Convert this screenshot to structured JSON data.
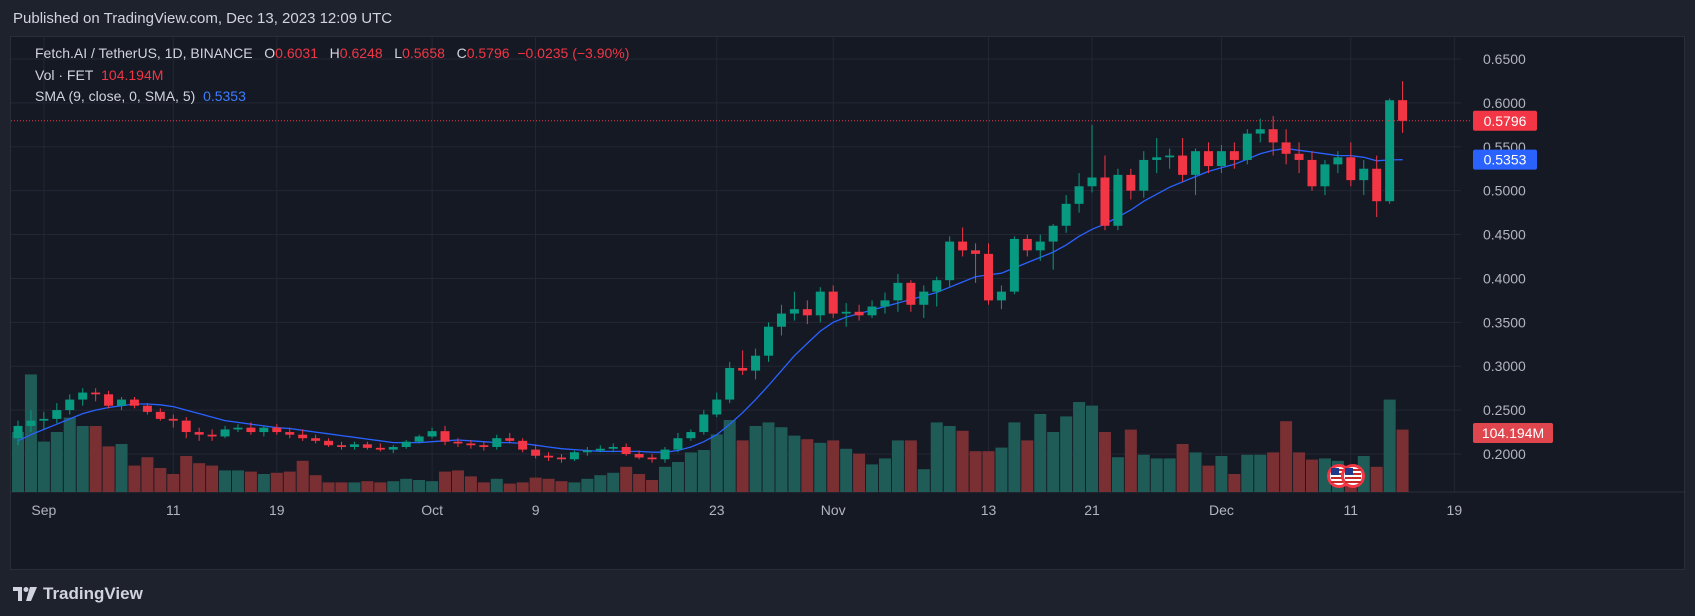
{
  "published": "Published on TradingView.com, Dec 13, 2023 12:09 UTC",
  "brand": "TradingView",
  "legend": {
    "symbol": "Fetch.AI / TetherUS, 1D, BINANCE",
    "o_label": "O",
    "o": "0.6031",
    "h_label": "H",
    "h": "0.6248",
    "l_label": "L",
    "l": "0.5658",
    "c_label": "C",
    "c": "0.5796",
    "change": "−0.0235 (−3.90%)",
    "vol_label": "Vol · FET",
    "vol": "104.194M",
    "sma_label": "SMA (9, close, 0, SMA, 5)",
    "sma": "0.5353"
  },
  "colors": {
    "up": "#089981",
    "down": "#f23645",
    "vol_up": "#1f5c57",
    "vol_down": "#7a2f33",
    "sma": "#2962ff",
    "bg": "#151924",
    "grid": "#232733",
    "text": "#b2b5be"
  },
  "chart_data": {
    "type": "candlestick",
    "y_ticks": [
      "0.6500",
      "0.6000",
      "0.5500",
      "0.5000",
      "0.4500",
      "0.4000",
      "0.3500",
      "0.3000",
      "0.2500",
      "0.2000"
    ],
    "ylim": [
      0.155,
      0.665
    ],
    "x_ticks": [
      {
        "label": "Sep",
        "index": 2
      },
      {
        "label": "11",
        "index": 12
      },
      {
        "label": "19",
        "index": 20
      },
      {
        "label": "Oct",
        "index": 32
      },
      {
        "label": "9",
        "index": 40
      },
      {
        "label": "23",
        "index": 54
      },
      {
        "label": "Nov",
        "index": 63
      },
      {
        "label": "13",
        "index": 75
      },
      {
        "label": "21",
        "index": 83
      },
      {
        "label": "Dec",
        "index": 93
      },
      {
        "label": "11",
        "index": 103
      },
      {
        "label": "19",
        "index": 111
      }
    ],
    "last_price_label": "0.5796",
    "last_price": 0.5796,
    "sma_label": "0.5353",
    "sma_last": 0.5353,
    "volume_label": "104.194M",
    "candles": [
      [
        0.218,
        0.238,
        0.21,
        0.232,
        0.5
      ],
      [
        0.232,
        0.25,
        0.225,
        0.238,
        0.98
      ],
      [
        0.238,
        0.248,
        0.228,
        0.24,
        0.42
      ],
      [
        0.24,
        0.258,
        0.235,
        0.25,
        0.5
      ],
      [
        0.25,
        0.268,
        0.245,
        0.262,
        0.62
      ],
      [
        0.262,
        0.275,
        0.255,
        0.27,
        0.55
      ],
      [
        0.27,
        0.275,
        0.26,
        0.268,
        0.55
      ],
      [
        0.268,
        0.272,
        0.252,
        0.255,
        0.38
      ],
      [
        0.255,
        0.265,
        0.25,
        0.262,
        0.4
      ],
      [
        0.262,
        0.265,
        0.252,
        0.255,
        0.22
      ],
      [
        0.255,
        0.258,
        0.245,
        0.248,
        0.29
      ],
      [
        0.248,
        0.252,
        0.238,
        0.24,
        0.2
      ],
      [
        0.24,
        0.245,
        0.23,
        0.238,
        0.15
      ],
      [
        0.238,
        0.242,
        0.218,
        0.225,
        0.3
      ],
      [
        0.225,
        0.23,
        0.215,
        0.222,
        0.24
      ],
      [
        0.222,
        0.228,
        0.215,
        0.22,
        0.22
      ],
      [
        0.22,
        0.232,
        0.218,
        0.228,
        0.18
      ],
      [
        0.228,
        0.234,
        0.225,
        0.23,
        0.18
      ],
      [
        0.23,
        0.236,
        0.222,
        0.225,
        0.17
      ],
      [
        0.225,
        0.232,
        0.22,
        0.23,
        0.15
      ],
      [
        0.23,
        0.234,
        0.222,
        0.225,
        0.16
      ],
      [
        0.225,
        0.23,
        0.218,
        0.222,
        0.17
      ],
      [
        0.222,
        0.228,
        0.215,
        0.218,
        0.26
      ],
      [
        0.218,
        0.222,
        0.212,
        0.215,
        0.14
      ],
      [
        0.215,
        0.218,
        0.208,
        0.21,
        0.08
      ],
      [
        0.21,
        0.214,
        0.205,
        0.208,
        0.08
      ],
      [
        0.208,
        0.214,
        0.205,
        0.211,
        0.08
      ],
      [
        0.211,
        0.214,
        0.205,
        0.207,
        0.09
      ],
      [
        0.207,
        0.212,
        0.203,
        0.205,
        0.08
      ],
      [
        0.205,
        0.21,
        0.201,
        0.208,
        0.09
      ],
      [
        0.208,
        0.216,
        0.206,
        0.214,
        0.11
      ],
      [
        0.214,
        0.222,
        0.212,
        0.22,
        0.1
      ],
      [
        0.22,
        0.23,
        0.218,
        0.226,
        0.09
      ],
      [
        0.226,
        0.232,
        0.21,
        0.214,
        0.17
      ],
      [
        0.214,
        0.218,
        0.208,
        0.212,
        0.18
      ],
      [
        0.212,
        0.216,
        0.206,
        0.21,
        0.13
      ],
      [
        0.21,
        0.214,
        0.204,
        0.208,
        0.08
      ],
      [
        0.208,
        0.222,
        0.205,
        0.218,
        0.11
      ],
      [
        0.218,
        0.224,
        0.212,
        0.215,
        0.07
      ],
      [
        0.215,
        0.218,
        0.202,
        0.205,
        0.08
      ],
      [
        0.205,
        0.21,
        0.195,
        0.198,
        0.12
      ],
      [
        0.198,
        0.202,
        0.192,
        0.196,
        0.11
      ],
      [
        0.196,
        0.2,
        0.19,
        0.194,
        0.09
      ],
      [
        0.194,
        0.204,
        0.192,
        0.202,
        0.08
      ],
      [
        0.202,
        0.208,
        0.198,
        0.204,
        0.11
      ],
      [
        0.204,
        0.21,
        0.202,
        0.206,
        0.14
      ],
      [
        0.206,
        0.212,
        0.202,
        0.208,
        0.16
      ],
      [
        0.208,
        0.212,
        0.198,
        0.2,
        0.21
      ],
      [
        0.2,
        0.204,
        0.194,
        0.196,
        0.15
      ],
      [
        0.196,
        0.2,
        0.19,
        0.194,
        0.1
      ],
      [
        0.194,
        0.208,
        0.19,
        0.205,
        0.21
      ],
      [
        0.205,
        0.224,
        0.202,
        0.218,
        0.25
      ],
      [
        0.218,
        0.228,
        0.215,
        0.225,
        0.33
      ],
      [
        0.225,
        0.25,
        0.222,
        0.245,
        0.35
      ],
      [
        0.245,
        0.27,
        0.242,
        0.262,
        0.48
      ],
      [
        0.262,
        0.305,
        0.258,
        0.298,
        0.6
      ],
      [
        0.298,
        0.318,
        0.29,
        0.295,
        0.43
      ],
      [
        0.295,
        0.32,
        0.285,
        0.312,
        0.55
      ],
      [
        0.312,
        0.35,
        0.305,
        0.345,
        0.58
      ],
      [
        0.345,
        0.37,
        0.335,
        0.36,
        0.54
      ],
      [
        0.36,
        0.385,
        0.352,
        0.365,
        0.47
      ],
      [
        0.365,
        0.375,
        0.348,
        0.358,
        0.44
      ],
      [
        0.358,
        0.39,
        0.35,
        0.385,
        0.41
      ],
      [
        0.385,
        0.392,
        0.355,
        0.36,
        0.43
      ],
      [
        0.36,
        0.372,
        0.345,
        0.362,
        0.36
      ],
      [
        0.362,
        0.37,
        0.352,
        0.358,
        0.32
      ],
      [
        0.358,
        0.375,
        0.355,
        0.368,
        0.23
      ],
      [
        0.368,
        0.384,
        0.36,
        0.375,
        0.28
      ],
      [
        0.375,
        0.405,
        0.362,
        0.395,
        0.43
      ],
      [
        0.395,
        0.398,
        0.362,
        0.37,
        0.43
      ],
      [
        0.37,
        0.392,
        0.355,
        0.385,
        0.19
      ],
      [
        0.385,
        0.402,
        0.368,
        0.398,
        0.58
      ],
      [
        0.398,
        0.448,
        0.39,
        0.442,
        0.55
      ],
      [
        0.442,
        0.458,
        0.425,
        0.432,
        0.51
      ],
      [
        0.432,
        0.44,
        0.395,
        0.428,
        0.34
      ],
      [
        0.428,
        0.44,
        0.37,
        0.375,
        0.34
      ],
      [
        0.375,
        0.392,
        0.365,
        0.385,
        0.37
      ],
      [
        0.385,
        0.448,
        0.382,
        0.445,
        0.58
      ],
      [
        0.445,
        0.45,
        0.425,
        0.432,
        0.43
      ],
      [
        0.432,
        0.45,
        0.42,
        0.442,
        0.65
      ],
      [
        0.442,
        0.462,
        0.41,
        0.46,
        0.5
      ],
      [
        0.46,
        0.495,
        0.452,
        0.485,
        0.63
      ],
      [
        0.485,
        0.52,
        0.475,
        0.505,
        0.75
      ],
      [
        0.505,
        0.575,
        0.498,
        0.515,
        0.72
      ],
      [
        0.515,
        0.54,
        0.455,
        0.46,
        0.5
      ],
      [
        0.46,
        0.525,
        0.455,
        0.518,
        0.29
      ],
      [
        0.518,
        0.525,
        0.49,
        0.5,
        0.52
      ],
      [
        0.5,
        0.545,
        0.492,
        0.535,
        0.31
      ],
      [
        0.535,
        0.56,
        0.52,
        0.538,
        0.28
      ],
      [
        0.538,
        0.548,
        0.525,
        0.54,
        0.28
      ],
      [
        0.54,
        0.56,
        0.51,
        0.518,
        0.4
      ],
      [
        0.518,
        0.548,
        0.495,
        0.545,
        0.33
      ],
      [
        0.545,
        0.555,
        0.52,
        0.528,
        0.22
      ],
      [
        0.528,
        0.552,
        0.52,
        0.545,
        0.3
      ],
      [
        0.545,
        0.555,
        0.525,
        0.535,
        0.15
      ],
      [
        0.535,
        0.57,
        0.53,
        0.565,
        0.31
      ],
      [
        0.565,
        0.582,
        0.555,
        0.57,
        0.31
      ],
      [
        0.57,
        0.585,
        0.54,
        0.555,
        0.33
      ],
      [
        0.555,
        0.57,
        0.53,
        0.542,
        0.59
      ],
      [
        0.542,
        0.555,
        0.52,
        0.535,
        0.33
      ],
      [
        0.535,
        0.545,
        0.5,
        0.505,
        0.27
      ],
      [
        0.505,
        0.535,
        0.495,
        0.53,
        0.28
      ],
      [
        0.53,
        0.545,
        0.52,
        0.538,
        0.26
      ],
      [
        0.538,
        0.555,
        0.505,
        0.512,
        0.22
      ],
      [
        0.512,
        0.535,
        0.495,
        0.525,
        0.3
      ],
      [
        0.525,
        0.54,
        0.47,
        0.488,
        0.21
      ],
      [
        0.488,
        0.605,
        0.485,
        0.603,
        0.77
      ],
      [
        0.6031,
        0.6248,
        0.5658,
        0.5796,
        0.52
      ]
    ],
    "sma": [
      0.215,
      0.222,
      0.228,
      0.234,
      0.24,
      0.246,
      0.25,
      0.253,
      0.255,
      0.257,
      0.257,
      0.256,
      0.254,
      0.25,
      0.246,
      0.242,
      0.238,
      0.236,
      0.234,
      0.232,
      0.23,
      0.229,
      0.227,
      0.225,
      0.223,
      0.221,
      0.219,
      0.217,
      0.215,
      0.213,
      0.213,
      0.213,
      0.214,
      0.215,
      0.216,
      0.215,
      0.214,
      0.213,
      0.213,
      0.212,
      0.21,
      0.208,
      0.206,
      0.205,
      0.204,
      0.203,
      0.203,
      0.203,
      0.203,
      0.202,
      0.202,
      0.204,
      0.208,
      0.214,
      0.222,
      0.234,
      0.247,
      0.262,
      0.278,
      0.295,
      0.312,
      0.326,
      0.34,
      0.35,
      0.356,
      0.36,
      0.364,
      0.368,
      0.372,
      0.376,
      0.38,
      0.384,
      0.39,
      0.396,
      0.402,
      0.404,
      0.406,
      0.412,
      0.418,
      0.424,
      0.43,
      0.438,
      0.448,
      0.456,
      0.462,
      0.47,
      0.478,
      0.488,
      0.496,
      0.504,
      0.51,
      0.516,
      0.522,
      0.526,
      0.53,
      0.536,
      0.542,
      0.546,
      0.548,
      0.546,
      0.544,
      0.542,
      0.54,
      0.54,
      0.538,
      0.534,
      0.535,
      0.5353
    ]
  }
}
